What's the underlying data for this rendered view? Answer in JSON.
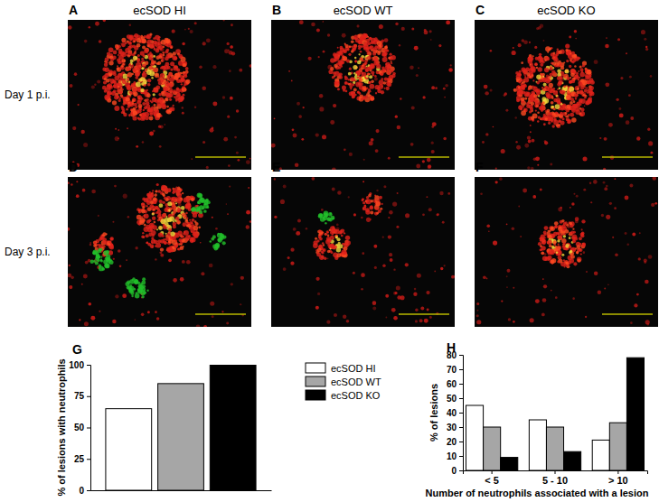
{
  "image_panels": {
    "columns": [
      "ecSOD HI",
      "ecSOD WT",
      "ecSOD KO"
    ],
    "rows": [
      "Day 1 p.i.",
      "Day 3 p.i."
    ],
    "letters": [
      [
        "A",
        "B",
        "C"
      ],
      [
        "D",
        "E",
        "F"
      ]
    ]
  },
  "chart_data": [
    {
      "type": "bar",
      "annotations": [
        "G"
      ],
      "categories": [
        null
      ],
      "series": [
        {
          "name": "ecSOD HI",
          "color": "#ffffff",
          "values": [
            65
          ]
        },
        {
          "name": "ecSOD WT",
          "color": "#a6a6a6",
          "values": [
            85
          ]
        },
        {
          "name": "ecSOD KO",
          "color": "#000000",
          "values": [
            100
          ]
        }
      ],
      "y_label": "% of lesions with neutrophils",
      "ylim": [
        0,
        100
      ],
      "yticks": [
        0,
        25,
        50,
        75,
        100
      ],
      "legend": "right",
      "tick_labels": "y"
    },
    {
      "type": "bar",
      "annotations": [
        "H"
      ],
      "categories": [
        "< 5",
        "5 - 10",
        "> 10"
      ],
      "series": [
        {
          "color": "#ffffff",
          "values": [
            45,
            35,
            21
          ]
        },
        {
          "color": "#a6a6a6",
          "values": [
            30,
            30,
            33
          ]
        },
        {
          "color": "#000000",
          "values": [
            9,
            13,
            78
          ]
        }
      ],
      "x_label": "Number of neutrophils associated with a lesion",
      "y_label": "% of lesions",
      "ylim": [
        0,
        80
      ],
      "yticks": [
        0,
        10,
        20,
        30,
        40,
        50,
        60,
        70,
        80
      ]
    }
  ]
}
